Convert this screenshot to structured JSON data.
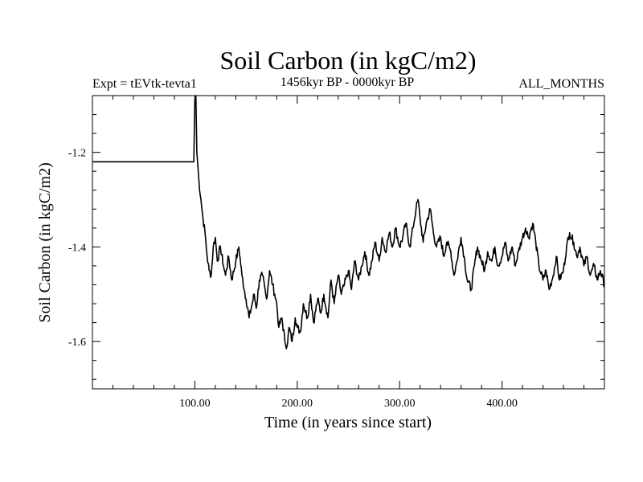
{
  "chart_data": {
    "type": "line",
    "title": "Soil Carbon (in kgC/m2)",
    "subtitle_left": "Expt = tEVtk-tevta1",
    "subtitle_center": "1456kyr BP - 0000kyr BP",
    "subtitle_right": "ALL_MONTHS",
    "xlabel": "Time (in years since start)",
    "ylabel": "Soil Carbon (in kgC/m2)",
    "xlim": [
      0,
      500
    ],
    "ylim": [
      -1.7,
      -1.08
    ],
    "xticks": [
      100,
      200,
      300,
      400
    ],
    "xtick_labels": [
      "100.00",
      "200.00",
      "300.00",
      "400.00"
    ],
    "yticks": [
      -1.2,
      -1.4,
      -1.6
    ],
    "ytick_labels": [
      "-1.2",
      "-1.4",
      "-1.6"
    ],
    "grid": false,
    "series": [
      {
        "name": "Soil Carbon",
        "x": [
          0,
          99,
          100,
          101,
          102,
          104,
          106,
          108,
          110,
          112,
          114,
          116,
          118,
          120,
          122,
          125,
          128,
          130,
          133,
          136,
          140,
          143,
          146,
          150,
          153,
          155,
          158,
          160,
          163,
          166,
          170,
          173,
          176,
          178,
          180,
          182,
          185,
          188,
          190,
          192,
          195,
          198,
          200,
          203,
          206,
          210,
          213,
          216,
          220,
          223,
          226,
          230,
          233,
          236,
          240,
          243,
          246,
          250,
          253,
          256,
          260,
          263,
          266,
          270,
          273,
          276,
          280,
          283,
          286,
          290,
          293,
          296,
          300,
          303,
          306,
          310,
          313,
          316,
          318,
          320,
          323,
          326,
          330,
          333,
          336,
          340,
          343,
          346,
          350,
          353,
          356,
          360,
          363,
          366,
          370,
          373,
          376,
          380,
          383,
          386,
          390,
          393,
          396,
          400,
          403,
          406,
          410,
          413,
          416,
          420,
          423,
          426,
          430,
          433,
          436,
          440,
          443,
          446,
          450,
          453,
          456,
          460,
          463,
          466,
          470,
          473,
          476,
          480,
          483,
          486,
          490,
          493,
          496,
          500
        ],
        "y": [
          -1.22,
          -1.22,
          -1.09,
          -1.08,
          -1.2,
          -1.26,
          -1.3,
          -1.34,
          -1.37,
          -1.42,
          -1.45,
          -1.46,
          -1.4,
          -1.38,
          -1.43,
          -1.4,
          -1.44,
          -1.46,
          -1.42,
          -1.47,
          -1.43,
          -1.4,
          -1.46,
          -1.51,
          -1.55,
          -1.53,
          -1.5,
          -1.53,
          -1.47,
          -1.46,
          -1.51,
          -1.45,
          -1.48,
          -1.5,
          -1.52,
          -1.57,
          -1.55,
          -1.6,
          -1.61,
          -1.57,
          -1.6,
          -1.55,
          -1.57,
          -1.58,
          -1.52,
          -1.55,
          -1.5,
          -1.56,
          -1.51,
          -1.54,
          -1.5,
          -1.55,
          -1.47,
          -1.52,
          -1.46,
          -1.5,
          -1.48,
          -1.45,
          -1.49,
          -1.43,
          -1.47,
          -1.44,
          -1.41,
          -1.46,
          -1.43,
          -1.39,
          -1.43,
          -1.38,
          -1.41,
          -1.37,
          -1.4,
          -1.36,
          -1.4,
          -1.38,
          -1.35,
          -1.4,
          -1.36,
          -1.32,
          -1.3,
          -1.34,
          -1.39,
          -1.35,
          -1.32,
          -1.37,
          -1.4,
          -1.38,
          -1.42,
          -1.39,
          -1.41,
          -1.46,
          -1.43,
          -1.38,
          -1.42,
          -1.47,
          -1.49,
          -1.44,
          -1.4,
          -1.43,
          -1.45,
          -1.41,
          -1.43,
          -1.4,
          -1.44,
          -1.42,
          -1.39,
          -1.43,
          -1.4,
          -1.44,
          -1.41,
          -1.38,
          -1.36,
          -1.38,
          -1.35,
          -1.39,
          -1.44,
          -1.47,
          -1.45,
          -1.49,
          -1.46,
          -1.42,
          -1.47,
          -1.45,
          -1.4,
          -1.37,
          -1.39,
          -1.42,
          -1.4,
          -1.44,
          -1.42,
          -1.46,
          -1.44,
          -1.47,
          -1.45,
          -1.48
        ]
      }
    ]
  }
}
